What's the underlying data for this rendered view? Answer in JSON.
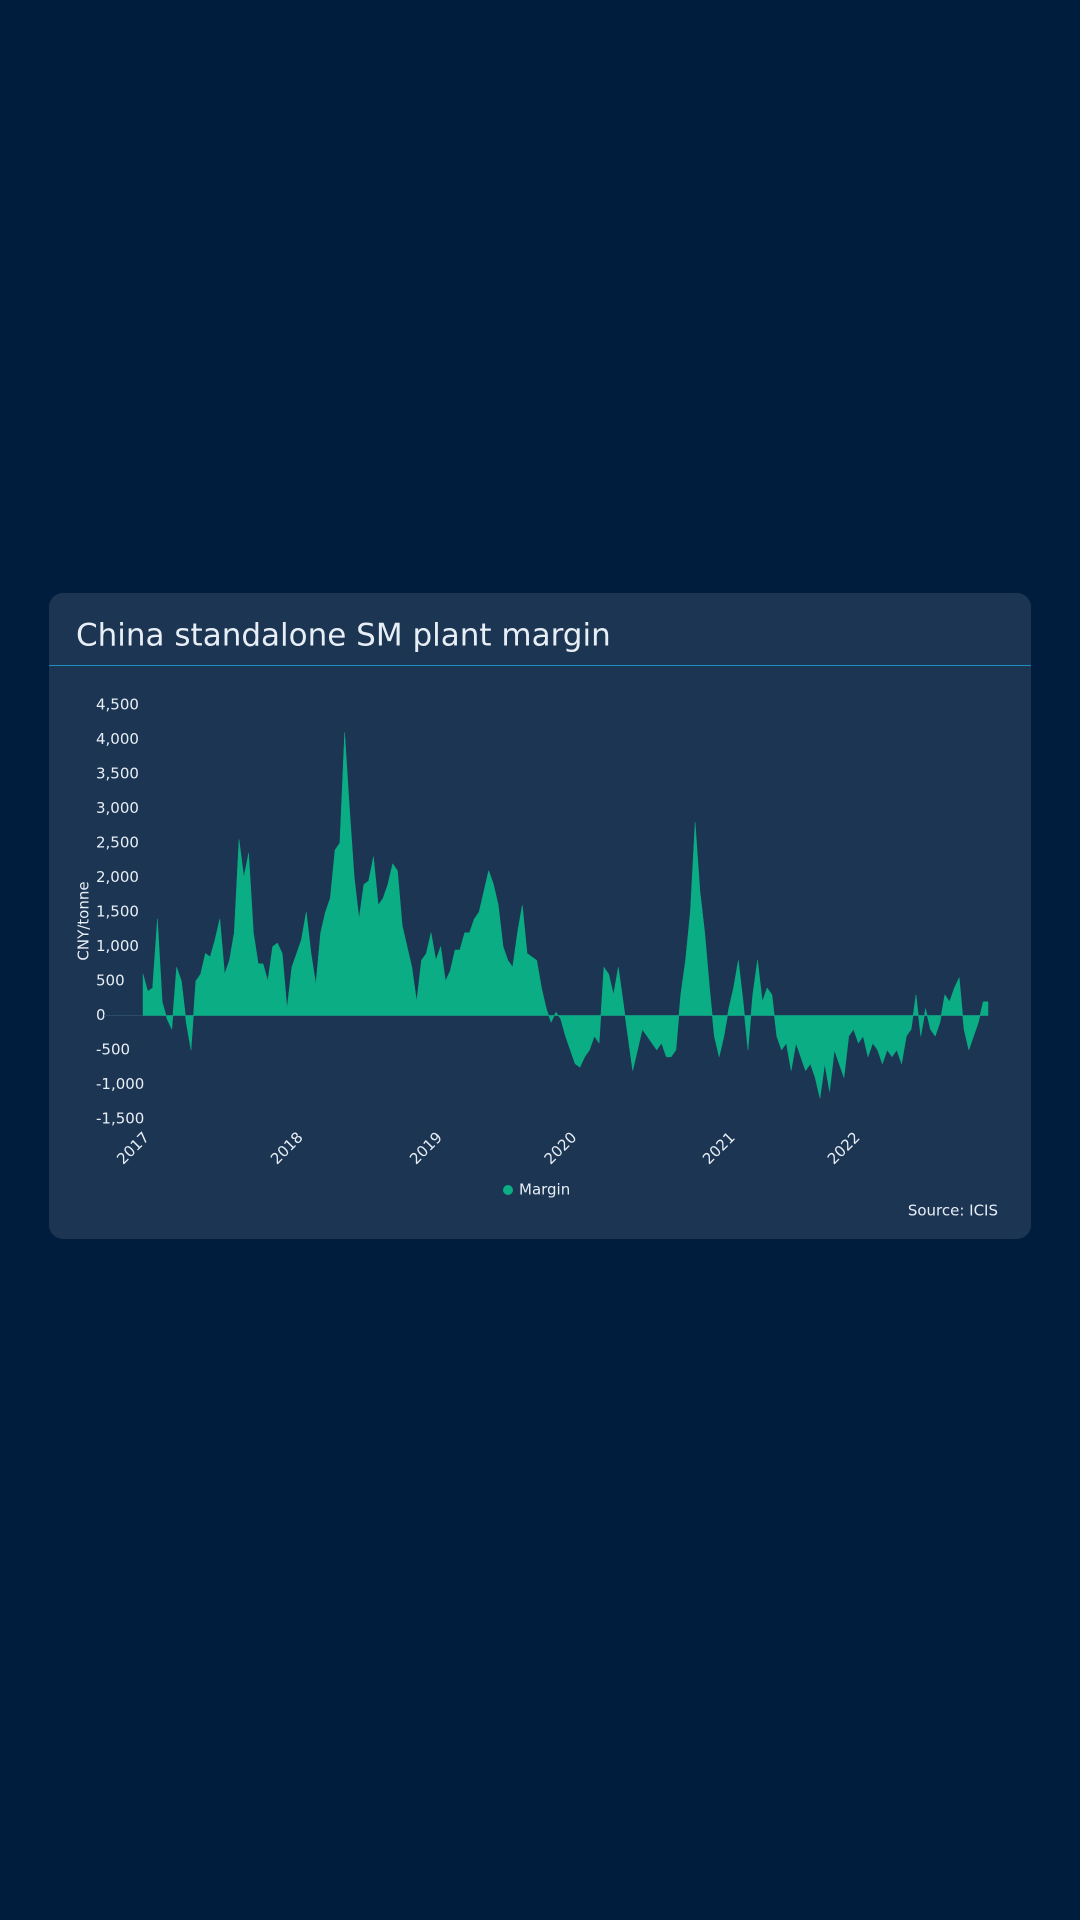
{
  "chart_data": {
    "type": "area",
    "title": "China standalone SM plant margin",
    "ylabel": "CNY/tonne",
    "source": "Source: ICIS",
    "categories": [
      "2017",
      null,
      null,
      null,
      null,
      null,
      null,
      null,
      null,
      null,
      null,
      null,
      null,
      null,
      null,
      null,
      null,
      null,
      null,
      null,
      null,
      null,
      null,
      null,
      null,
      null,
      null,
      null,
      null,
      null,
      null,
      null,
      "2018",
      null,
      null,
      null,
      null,
      null,
      null,
      null,
      null,
      null,
      null,
      null,
      null,
      null,
      null,
      null,
      null,
      null,
      null,
      null,
      null,
      null,
      null,
      null,
      null,
      null,
      null,
      null,
      null,
      "2019",
      null,
      null,
      null,
      null,
      null,
      null,
      null,
      null,
      null,
      null,
      null,
      null,
      null,
      null,
      null,
      null,
      null,
      null,
      null,
      null,
      null,
      null,
      null,
      null,
      null,
      null,
      null,
      "2020",
      null,
      null,
      null,
      null,
      null,
      null,
      null,
      null,
      null,
      null,
      null,
      null,
      null,
      null,
      null,
      null,
      null,
      null,
      null,
      null,
      null,
      null,
      null,
      null,
      null,
      null,
      null,
      null,
      null,
      null,
      null,
      null,
      "2021",
      null,
      null,
      null,
      null,
      null,
      null,
      null,
      null,
      null,
      null,
      null,
      null,
      null,
      null,
      null,
      null,
      null,
      null,
      null,
      null,
      null,
      null,
      null,
      null,
      null,
      "2022",
      null,
      null,
      null,
      null,
      null,
      null,
      null,
      null,
      null,
      null,
      null,
      null,
      null,
      null,
      null,
      null,
      null,
      null,
      null,
      null,
      null,
      null,
      null,
      null,
      null,
      null,
      null,
      null
    ],
    "series": [
      {
        "name": "Margin",
        "color": "#0aad84",
        "values": [
          600,
          350,
          400,
          1400,
          200,
          -50,
          -200,
          700,
          500,
          -100,
          -500,
          500,
          600,
          900,
          850,
          1100,
          1400,
          600,
          800,
          1200,
          2550,
          2000,
          2350,
          1200,
          750,
          750,
          500,
          1000,
          1050,
          900,
          100,
          700,
          900,
          1100,
          1500,
          900,
          450,
          1200,
          1500,
          1700,
          2400,
          2500,
          4100,
          3000,
          2000,
          1400,
          1900,
          1950,
          2300,
          1600,
          1700,
          1900,
          2200,
          2100,
          1300,
          1000,
          700,
          200,
          800,
          900,
          1200,
          800,
          1000,
          500,
          650,
          950,
          950,
          1200,
          1200,
          1400,
          1500,
          1800,
          2100,
          1900,
          1600,
          1000,
          800,
          700,
          1200,
          1600,
          900,
          850,
          800,
          400,
          100,
          -100,
          50,
          -50,
          -300,
          -500,
          -700,
          -750,
          -600,
          -500,
          -300,
          -400,
          700,
          600,
          300,
          700,
          200,
          -300,
          -800,
          -500,
          -200,
          -300,
          -400,
          -500,
          -400,
          -600,
          -600,
          -500,
          300,
          800,
          1500,
          2800,
          1800,
          1200,
          400,
          -300,
          -600,
          -300,
          100,
          400,
          800,
          200,
          -500,
          300,
          800,
          200,
          400,
          300,
          -300,
          -500,
          -400,
          -800,
          -400,
          -600,
          -800,
          -700,
          -900,
          -1200,
          -700,
          -1100,
          -500,
          -700,
          -900,
          -300,
          -200,
          -400,
          -300,
          -600,
          -400,
          -500,
          -700,
          -500,
          -600,
          -500,
          -700,
          -300,
          -200,
          300,
          -300,
          100,
          -200,
          -300,
          -100,
          300,
          200,
          400,
          550,
          -200,
          -500,
          -300,
          -100,
          200,
          200
        ]
      }
    ],
    "ylim": [
      -1500,
      4500
    ],
    "yticks": [
      {
        "value": -1500,
        "label": "-1,500"
      },
      {
        "value": -1000,
        "label": "-1,000"
      },
      -500,
      0,
      500,
      {
        "value": 1000,
        "label": "1,000"
      },
      {
        "value": 1500,
        "label": "1,500"
      },
      {
        "value": 2000,
        "label": "2,000"
      },
      {
        "value": 2500,
        "label": "2,500"
      },
      {
        "value": 3000,
        "label": "3,000"
      },
      {
        "value": 3500,
        "label": "3,500"
      },
      {
        "value": 4000,
        "label": "4,000"
      },
      {
        "value": 4500,
        "label": "4,500"
      }
    ],
    "legend": "bottom"
  }
}
